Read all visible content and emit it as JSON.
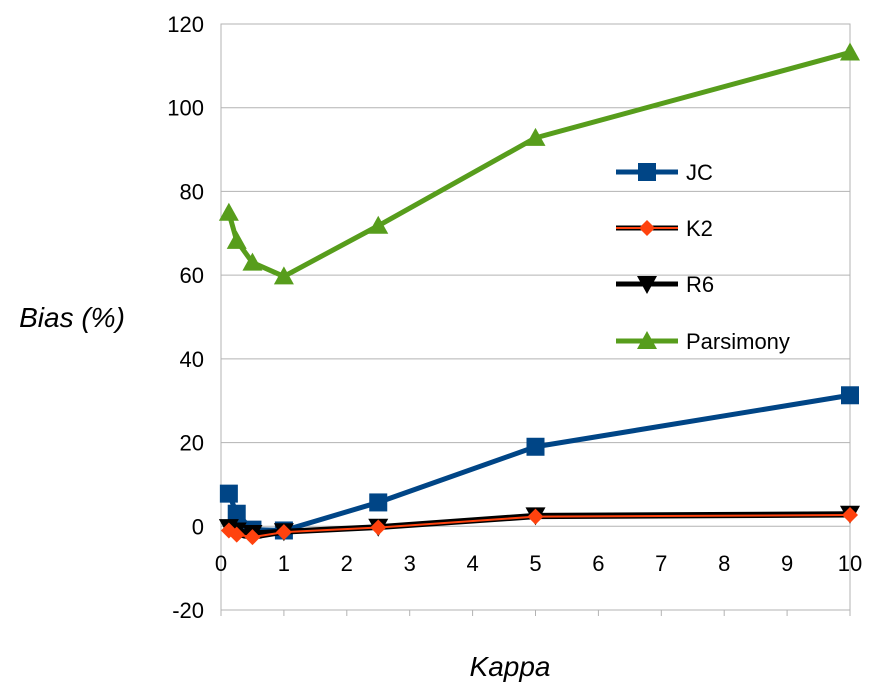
{
  "chart_data": {
    "type": "line",
    "title": "",
    "xlabel": "Kappa",
    "ylabel": "Bias (%)",
    "xlim": [
      0,
      10
    ],
    "ylim": [
      -20,
      120
    ],
    "xticks": [
      0,
      1,
      2,
      3,
      4,
      5,
      6,
      7,
      8,
      9,
      10
    ],
    "yticks": [
      -20,
      0,
      20,
      40,
      60,
      80,
      100,
      120
    ],
    "grid": "horizontal",
    "legend_position": "right",
    "series": [
      {
        "name": "JC",
        "color": "#004586",
        "marker": "square",
        "x": [
          0.125,
          0.25,
          0.5,
          1,
          2.5,
          5,
          10
        ],
        "y": [
          7.8,
          3.0,
          -0.8,
          -1.0,
          5.7,
          19.0,
          31.3
        ]
      },
      {
        "name": "K2",
        "color": "#ff420e",
        "marker": "diamond",
        "x": [
          0.125,
          0.25,
          0.5,
          1,
          2.5,
          5,
          10
        ],
        "y": [
          -1.0,
          -2.0,
          -2.6,
          -1.4,
          -0.3,
          2.3,
          2.7
        ]
      },
      {
        "name": "R6",
        "color": "#000000",
        "marker": "triangle-down",
        "x": [
          0.125,
          0.25,
          0.5,
          1,
          2.5,
          5,
          10
        ],
        "y": [
          -0.2,
          -1.0,
          -1.6,
          -1.2,
          -0.1,
          2.6,
          3.0
        ]
      },
      {
        "name": "Parsimony",
        "color": "#579d1c",
        "marker": "triangle-up",
        "x": [
          0.125,
          0.25,
          0.5,
          1,
          2.5,
          5,
          10
        ],
        "y": [
          74.9,
          68.2,
          63.0,
          59.7,
          71.8,
          92.8,
          113.2
        ]
      }
    ]
  }
}
